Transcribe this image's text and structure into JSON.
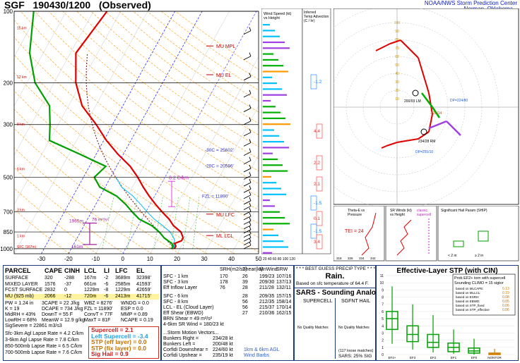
{
  "header": {
    "station": "SGF",
    "datetime": "190430/1200",
    "type": "(Observed)",
    "center": "NOAA/NWS Storm Prediction Center",
    "location": "Norman, Oklahoma"
  },
  "skewt": {
    "pressure_labels": [
      "100",
      "200",
      "300",
      "500",
      "700",
      "850",
      "1000"
    ],
    "temp_labels": [
      "-30",
      "-20",
      "-10",
      "0",
      "10",
      "20",
      "30",
      "40",
      "50"
    ],
    "height_labels": [
      "15 km",
      "12 km",
      "9 km",
      "6 km",
      "3 km",
      "1 km",
      "SFC (167m)"
    ],
    "level_labels": [
      "MU MPL",
      "MU EL",
      "MU LFC",
      "ML LCL"
    ],
    "annotations": [
      "-30C = 25602'",
      "-20C = 20586'",
      "FZL = 11890'",
      "8.2 C/km",
      "76 m²/s²",
      "1965m",
      "161m"
    ],
    "colors": {
      "temp": "#e00000",
      "dewp": "#00a000",
      "parcel": "#803030",
      "wetbulb": "#00c0ff",
      "dry_adiabat": "#ff9900",
      "isotherm_neg": "#3030ff",
      "isotherm": "#c8c8c8",
      "mix": "#40c040"
    }
  },
  "mini_panels": {
    "wind_title": "Wind Speed (kt)\nvs Height",
    "wind_axis": "20 40 60 80 100 120",
    "adv_title": "Inferred\nTemp Advection\n(C / hr)",
    "adv_values": [
      "-1.2",
      "4.4",
      "2.2",
      "2.1",
      "-1.5",
      "0.1",
      "-1.5",
      "3.4"
    ]
  },
  "hodograph": {
    "labels": [
      "0-2 km",
      "0-3 km",
      "200/03 LM",
      "220/14",
      "234/28 RM",
      "DP=224/80",
      "DP=255/10"
    ]
  },
  "small_boxes": {
    "theta_title": "Theta-E vs\nPressure",
    "theta_values": [
      "318",
      "326",
      "334",
      "342"
    ],
    "srw_title": "SR Winds (kt)\nvs Height",
    "srw_legend": "classic\nsupercell",
    "tei": "TEI = 24",
    "ship_title": "Significant Hail Param (SHIP)",
    "ship_axis_left": "< 2 in",
    "ship_axis_right": "≥ 2 in"
  },
  "thermo": {
    "headers": [
      "PARCEL",
      "CAPE",
      "CINH",
      "LCL",
      "LI",
      "LFC",
      "EL"
    ],
    "rows": [
      [
        "SURFACE",
        "320",
        "-288",
        "167m",
        "-2",
        "3689m",
        "32398'"
      ],
      [
        "MIXED LAYER",
        "1576",
        "-37",
        "661m",
        "-6",
        "2585m",
        "41593'"
      ],
      [
        "FCST SURFACE",
        "2832",
        "0",
        "1229m",
        "-8",
        "1229m",
        "42659'"
      ],
      [
        "MU  (925 mb)",
        "2066",
        "-12",
        "720m",
        "-6",
        "2413m",
        "41715'"
      ]
    ],
    "col1": [
      "PW = 1.24 in",
      "K = 19",
      "MidRH = 43%",
      "LowRH = 68%",
      "SigSevere = 22861 m3/s3"
    ],
    "col2": [
      "3CAPE = 22 J/kg",
      "DCAPE = 734 J/kg",
      "DownT = 55 F",
      "MeanW = 12.9 g/kg"
    ],
    "col3": [
      "WBZ = 8276'",
      "FZL = 11890'",
      "ConvT = 77F",
      "MaxT = 81F"
    ],
    "col4": [
      "WNDG = 0.0",
      "ESP = 0.0",
      "MMP = 0.89",
      "NCAPE = 0.19"
    ],
    "lapse": [
      "Sfc-3km Agl Lapse Rate = 4.2 C/km",
      "3-6km Agl Lapse Rate = 7.8 C/km",
      "850-500mb Lapse Rate = 6.5 C/km",
      "700-500mb Lapse Rate = 7.6 C/km"
    ],
    "indices": [
      "Supercell = 2.1",
      "Left Supercell = -3.4",
      "STP (eff layer) = 0.0",
      "STP (fix layer) = 0.0",
      "Sig Hail = 0.9"
    ]
  },
  "kinematic": {
    "headers": [
      "",
      "SRH(m2/s2)",
      "Shear(kt)",
      "MnWind",
      "SRW"
    ],
    "rows": [
      [
        "SFC - 1 km",
        "170",
        "26",
        "199/23",
        "107/16"
      ],
      [
        "SFC - 3 km",
        "178",
        "39",
        "209/30",
        "137/13"
      ],
      [
        "Eff Inflow Layer",
        "76",
        "28",
        "211/28",
        "132/11"
      ],
      [
        "SFC - 6 km",
        "",
        "28",
        "209/35",
        "157/15"
      ],
      [
        "SFC - 8 km",
        "",
        "56",
        "212/35",
        "158/14"
      ],
      [
        "LCL - EL (Cloud Layer)",
        "",
        "56",
        "215/37",
        "170/14"
      ],
      [
        "Eff Shear (EBWD)",
        "",
        "27",
        "210/36",
        "162/15"
      ]
    ],
    "brn": [
      "BRN Shear = 49 m²/s²",
      "4-6km SR Wind = 180/23 kt"
    ],
    "motion_title": "...Storm Motion Vectors...",
    "motion": [
      [
        "Bunkers Right =",
        "234/28 kt"
      ],
      [
        "Bunkers Left =",
        "200/48 kt"
      ],
      [
        "Corfidi Downshear =",
        "224/60 kt"
      ],
      [
        "Corfidi Upshear =",
        "235/19 kt"
      ]
    ],
    "barb_note": "1km & 6km AGL\nWind Barbs"
  },
  "precip": {
    "title": "* * * BEST GUESS PRECIP TYPE * * *",
    "value": "Rain.",
    "note": "Based on sfc temperature of 64.4 F."
  },
  "sars": {
    "title": "SARS - Sounding Analogs",
    "cols": [
      "SUPERCELL",
      "SGFNT HAIL"
    ],
    "nomatch": "No Quality Matches",
    "foot1": "(117 loose matches)",
    "foot2": "SARS: 25% SIG"
  },
  "stp": {
    "title": "Effective-Layer STP (with CIN)",
    "prob": "Prob EF2+ torn with supercell",
    "climo": "Sounding CLIMO = 15 sigtor",
    "conds": [
      [
        "based on MLCAPE:",
        "0.13"
      ],
      [
        "based on MLLCL:",
        "0.19"
      ],
      [
        "based on ESRH:",
        "0.08"
      ],
      [
        "based on EBWD:",
        "0.05"
      ],
      [
        "based on STP_fixed",
        "0.06"
      ],
      [
        "based on STP_effective",
        "0.06"
      ]
    ],
    "cats": [
      "EF4+",
      "EF3",
      "EF2",
      "EF1",
      "EF0",
      "NONTOR"
    ],
    "yticks": [
      "11",
      "10",
      "9",
      "8",
      "7",
      "6",
      "5",
      "4",
      "3",
      "2",
      "1",
      "0"
    ]
  },
  "chart_data": {
    "type": "line",
    "title": "SGF 190430/1200 (Observed)",
    "xlabel": "",
    "ylabel": "",
    "xlim": [
      -40,
      50
    ],
    "ylim": [
      1000,
      100
    ],
    "series": [
      {
        "name": "Temperature",
        "pressure": [
          1000,
          975,
          950,
          925,
          900,
          850,
          800,
          750,
          700,
          650,
          600,
          550,
          500,
          450,
          400,
          350,
          300,
          250,
          200,
          150,
          100
        ],
        "values": [
          18,
          18,
          17,
          19,
          19,
          17,
          13,
          10,
          6,
          2,
          -2,
          -6,
          -10,
          -15,
          -22,
          -29,
          -36,
          -45,
          -52,
          -58,
          -55
        ]
      },
      {
        "name": "Dewpoint",
        "pressure": [
          1000,
          975,
          950,
          925,
          900,
          850,
          800,
          750,
          700,
          650,
          600,
          550,
          500,
          450,
          400,
          350,
          300,
          250,
          200,
          150,
          100
        ],
        "values": [
          17,
          17,
          16,
          14,
          12,
          9,
          5,
          -1,
          -5,
          -9,
          -14,
          -22,
          -26,
          -24,
          -36,
          -50,
          -53,
          -57,
          -67,
          -75,
          -82
        ]
      }
    ]
  }
}
